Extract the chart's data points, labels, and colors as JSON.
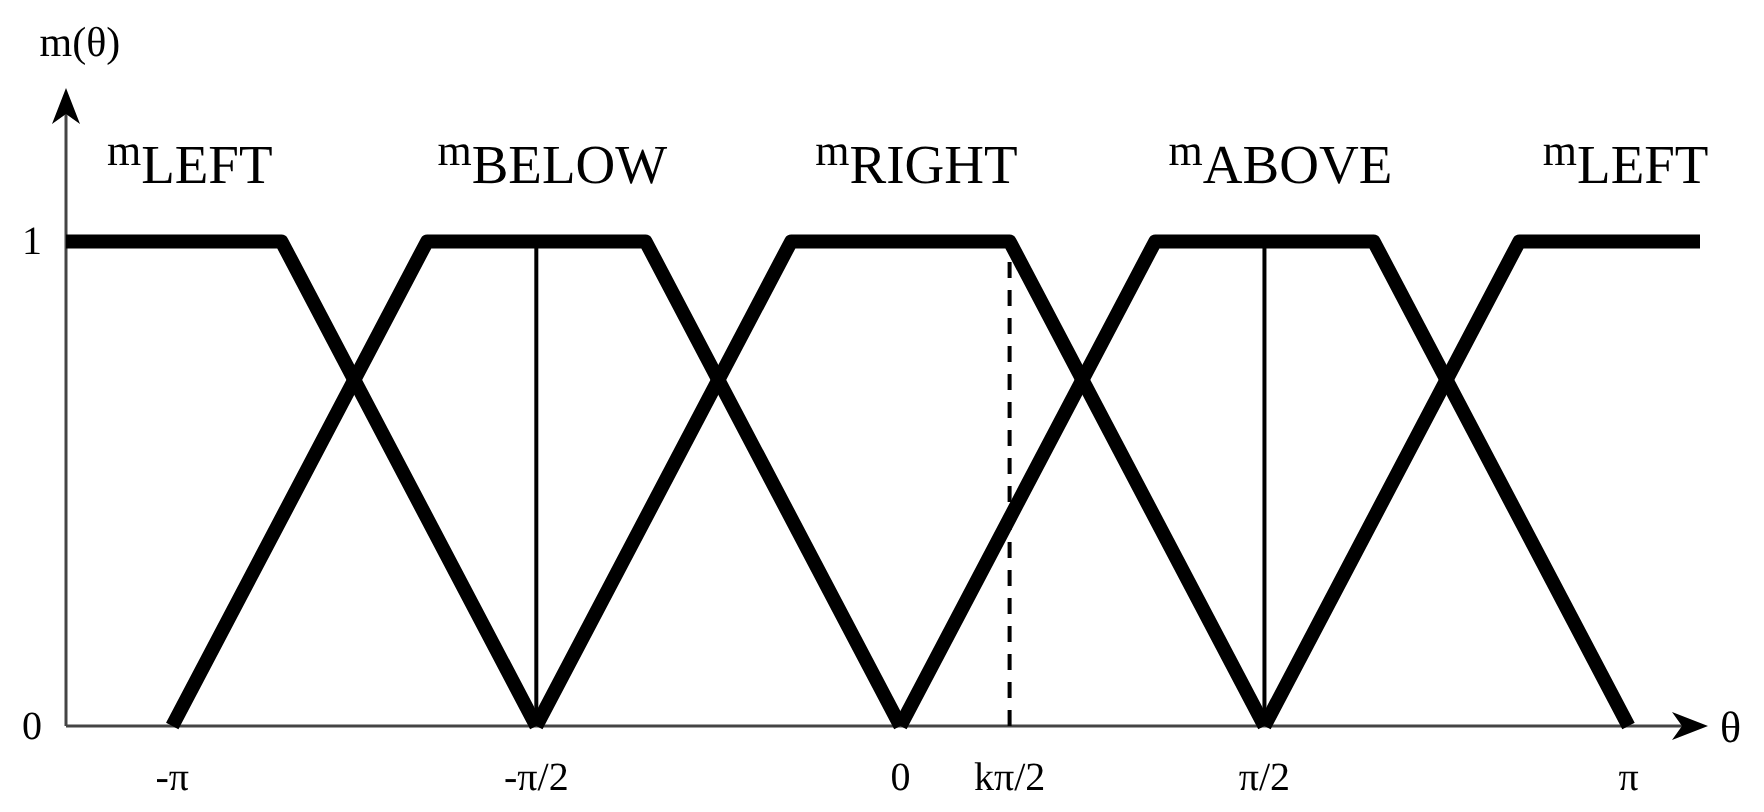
{
  "chart_data": {
    "type": "line",
    "xlabel": "θ",
    "ylabel": "m(θ)",
    "xlim": [
      -3.6,
      3.45
    ],
    "ylim": [
      0,
      1.3
    ],
    "xticks": [
      {
        "value": -3.1416,
        "label": "-π"
      },
      {
        "value": -1.5708,
        "label": "-π/2"
      },
      0,
      {
        "value": 1.5708,
        "label": "π/2"
      },
      {
        "value": 3.1416,
        "label": "π"
      }
    ],
    "yticks": [
      0,
      1
    ],
    "series": [
      {
        "name": "m$_{LEFT}$",
        "color": "#000000",
        "x": [
          -3.6,
          -2.6704,
          -1.5708
        ],
        "values": [
          1,
          1,
          0
        ]
      },
      {
        "name": "m$_{BELOW}$",
        "color": "#000000",
        "x": [
          -3.1416,
          -2.042,
          -1.0996,
          0
        ],
        "values": [
          0,
          1,
          1,
          0
        ]
      },
      {
        "name": "m$_{RIGHT}$",
        "color": "#000000",
        "x": [
          -1.5708,
          -0.4712,
          0.4712,
          1.5708
        ],
        "values": [
          0,
          1,
          1,
          0
        ]
      },
      {
        "name": "m$_{ABOVE}$",
        "color": "#000000",
        "x": [
          0,
          1.0996,
          2.042,
          3.1416
        ],
        "values": [
          0,
          1,
          1,
          0
        ]
      },
      {
        "name": "m$_{LEFT}$",
        "color": "#000000",
        "x": [
          1.5708,
          2.6704,
          3.45
        ],
        "values": [
          0,
          1,
          1
        ]
      }
    ],
    "ref_lines": [
      {
        "axis": "x",
        "value": -1.5708,
        "color": "#000000",
        "line_style": "solid"
      },
      {
        "axis": "x",
        "value": 0.4712,
        "label": "kπ/2",
        "color": "#000000",
        "line_style": "dashed"
      },
      {
        "axis": "x",
        "value": 1.5708,
        "color": "#000000",
        "line_style": "solid"
      }
    ]
  }
}
